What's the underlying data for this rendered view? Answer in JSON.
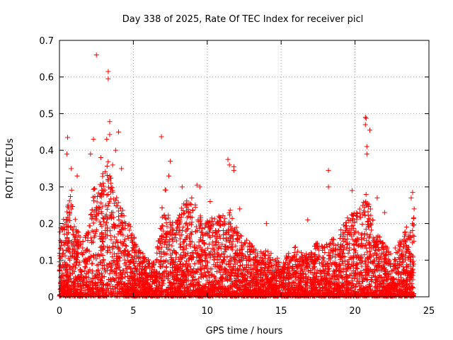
{
  "chart_data": {
    "type": "scatter",
    "title": "Day 338 of 2025, Rate Of TEC Index for receiver picl",
    "xlabel": "GPS time / hours",
    "ylabel": "ROTI / TECUs",
    "xlim": [
      0,
      25
    ],
    "ylim": [
      0,
      0.7
    ],
    "xticks": [
      "0",
      "5",
      "10",
      "15",
      "20",
      "25"
    ],
    "yticks": [
      "0",
      "0.1",
      "0.2",
      "0.3",
      "0.4",
      "0.5",
      "0.6",
      "0.7"
    ],
    "grid": true,
    "marker": "plus",
    "color": "#ff0000",
    "envelope": {
      "x": [
        0.0,
        0.5,
        0.8,
        1.0,
        1.5,
        2.0,
        2.3,
        2.7,
        3.0,
        3.3,
        3.6,
        4.0,
        4.4,
        4.8,
        5.2,
        5.6,
        6.0,
        6.5,
        6.9,
        7.2,
        7.5,
        8.0,
        8.5,
        9.0,
        9.5,
        10.0,
        10.5,
        11.0,
        11.5,
        12.0,
        12.5,
        13.0,
        13.5,
        14.0,
        14.5,
        15.0,
        15.5,
        16.0,
        16.5,
        17.0,
        17.5,
        18.0,
        18.5,
        19.0,
        19.5,
        20.0,
        20.5,
        20.9,
        21.3,
        21.7,
        22.0,
        22.5,
        23.0,
        23.5,
        24.0
      ],
      "y": [
        0.18,
        0.24,
        0.3,
        0.22,
        0.15,
        0.19,
        0.3,
        0.33,
        0.34,
        0.37,
        0.3,
        0.27,
        0.22,
        0.2,
        0.14,
        0.12,
        0.1,
        0.09,
        0.24,
        0.3,
        0.22,
        0.21,
        0.27,
        0.27,
        0.22,
        0.21,
        0.23,
        0.22,
        0.24,
        0.19,
        0.16,
        0.14,
        0.12,
        0.13,
        0.11,
        0.1,
        0.12,
        0.14,
        0.11,
        0.13,
        0.15,
        0.14,
        0.16,
        0.18,
        0.22,
        0.23,
        0.25,
        0.3,
        0.2,
        0.16,
        0.14,
        0.12,
        0.15,
        0.19,
        0.22
      ]
    },
    "points": [
      [
        2.5,
        0.66
      ],
      [
        3.3,
        0.615
      ],
      [
        3.3,
        0.595
      ],
      [
        3.4,
        0.478
      ],
      [
        3.4,
        0.443
      ],
      [
        3.2,
        0.43
      ],
      [
        4.0,
        0.45
      ],
      [
        6.9,
        0.437
      ],
      [
        0.55,
        0.435
      ],
      [
        0.5,
        0.39
      ],
      [
        20.7,
        0.49
      ],
      [
        20.75,
        0.487
      ],
      [
        20.7,
        0.47
      ],
      [
        21.0,
        0.455
      ],
      [
        20.8,
        0.41
      ],
      [
        20.8,
        0.39
      ],
      [
        18.2,
        0.345
      ],
      [
        18.2,
        0.3
      ],
      [
        19.8,
        0.29
      ],
      [
        11.4,
        0.375
      ],
      [
        11.5,
        0.36
      ],
      [
        11.8,
        0.355
      ],
      [
        11.8,
        0.345
      ],
      [
        9.3,
        0.305
      ],
      [
        9.5,
        0.3
      ],
      [
        2.3,
        0.43
      ],
      [
        2.1,
        0.39
      ],
      [
        1.2,
        0.33
      ],
      [
        3.8,
        0.4
      ],
      [
        4.2,
        0.35
      ],
      [
        7.5,
        0.37
      ],
      [
        7.4,
        0.33
      ],
      [
        23.9,
        0.285
      ],
      [
        23.8,
        0.27
      ],
      [
        24.0,
        0.24
      ],
      [
        0.8,
        0.35
      ],
      [
        2.8,
        0.38
      ],
      [
        3.6,
        0.36
      ],
      [
        16.8,
        0.21
      ],
      [
        14.0,
        0.2
      ],
      [
        12.2,
        0.24
      ],
      [
        10.2,
        0.26
      ],
      [
        8.3,
        0.3
      ],
      [
        22.0,
        0.23
      ],
      [
        21.5,
        0.27
      ]
    ]
  }
}
